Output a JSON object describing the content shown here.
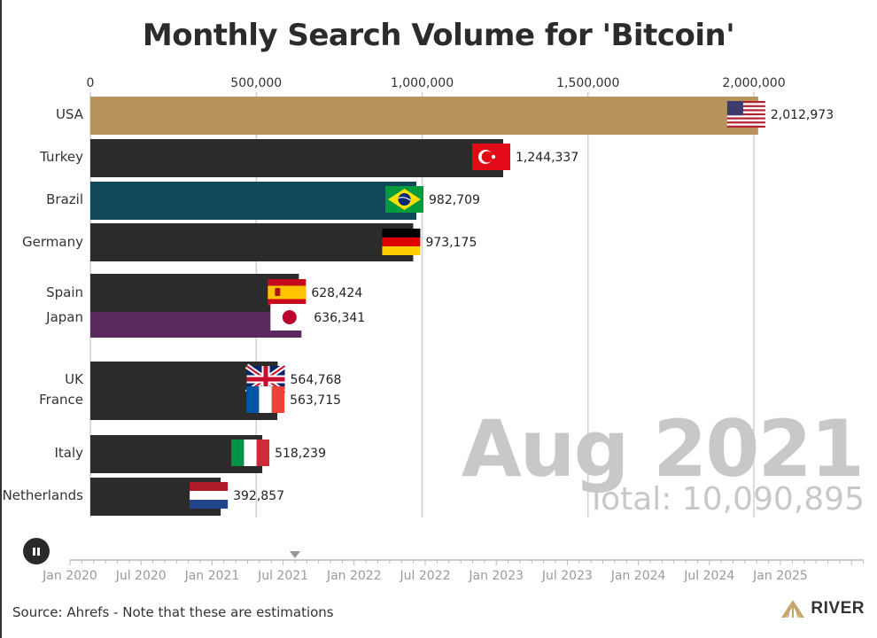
{
  "chart_data": {
    "type": "bar",
    "orientation": "horizontal",
    "title": "Monthly Search Volume for 'Bitcoin'",
    "x_ticks": [
      "0",
      "500,000",
      "1,000,000",
      "1,500,000",
      "2,000,000"
    ],
    "xlim": [
      0,
      2000000
    ],
    "categories": [
      "USA",
      "Turkey",
      "Brazil",
      "Germany",
      "Spain",
      "Japan",
      "UK",
      "France",
      "Italy",
      "Netherlands"
    ],
    "values": [
      2012973,
      1244337,
      982709,
      973175,
      628424,
      636341,
      564768,
      563715,
      518239,
      392857
    ],
    "value_labels": [
      "2,012,973",
      "1,244,337",
      "982,709",
      "973,175",
      "628,424",
      "636,341",
      "564,768",
      "563,715",
      "518,239",
      "392,857"
    ],
    "bar_colors": [
      "#b8945c",
      "#2b2b2b",
      "#104a5a",
      "#2b2b2b",
      "#2b2b2b",
      "#5a2a5e",
      "#2b2b2b",
      "#2b2b2b",
      "#2b2b2b",
      "#2b2b2b"
    ],
    "flags": [
      "usa-flag-icon",
      "turkey-flag-icon",
      "brazil-flag-icon",
      "germany-flag-icon",
      "spain-flag-icon",
      "japan-flag-icon",
      "uk-flag-icon",
      "france-flag-icon",
      "italy-flag-icon",
      "netherlands-flag-icon"
    ],
    "current_date": "Aug 2021",
    "total_label": "Total: 10,090,895"
  },
  "timeline": {
    "labels": [
      "Jan 2020",
      "Jul 2020",
      "Jan 2021",
      "Jul 2021",
      "Jan 2022",
      "Jul 2022",
      "Jan 2023",
      "Jul 2023",
      "Jan 2024",
      "Jul 2024",
      "Jan 2025"
    ],
    "position_month_index": 19
  },
  "footer": {
    "source": "Source: Ahrefs - Note that these are estimations",
    "brand": "RIVER"
  },
  "colors": {
    "grid": "#d0d0d0",
    "watermark": "#c8c8c8"
  }
}
